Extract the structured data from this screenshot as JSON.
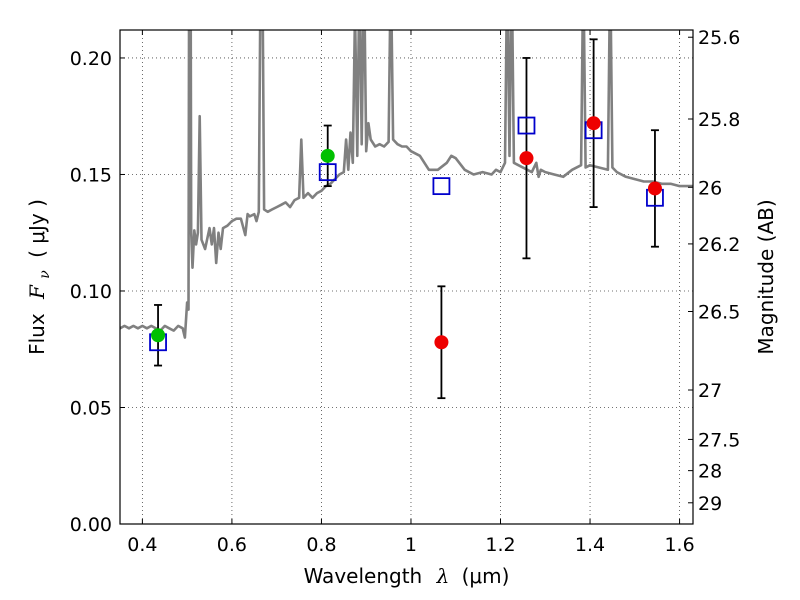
{
  "chart_data": {
    "type": "scatter",
    "title": "",
    "xlabel": {
      "prefix": "Wavelength",
      "symbol": "λ",
      "unit": "(μm)"
    },
    "ylabel": {
      "prefix": "Flux",
      "symbol": "F",
      "subscript": "ν",
      "unit": "( μJy )"
    },
    "ylabel_right": "Magnitude (AB)",
    "xlim": [
      0.35,
      1.63
    ],
    "ylim": [
      0.0,
      0.212
    ],
    "grid": true,
    "x_ticks": [
      {
        "value": 0.4,
        "label": "0.4"
      },
      {
        "value": 0.6,
        "label": "0.6"
      },
      {
        "value": 0.8,
        "label": "0.8"
      },
      {
        "value": 1.0,
        "label": "1"
      },
      {
        "value": 1.2,
        "label": "1.2"
      },
      {
        "value": 1.4,
        "label": "1.4"
      },
      {
        "value": 1.6,
        "label": "1.6"
      }
    ],
    "y_ticks": [
      {
        "value": 0.0,
        "label": "0.00"
      },
      {
        "value": 0.05,
        "label": "0.05"
      },
      {
        "value": 0.1,
        "label": "0.10"
      },
      {
        "value": 0.15,
        "label": "0.15"
      },
      {
        "value": 0.2,
        "label": "0.20"
      }
    ],
    "mag_ticks": [
      {
        "label": "25.6",
        "flux": 0.2089
      },
      {
        "label": "25.8",
        "flux": 0.1738
      },
      {
        "label": "26",
        "flux": 0.1445
      },
      {
        "label": "26.2",
        "flux": 0.1202
      },
      {
        "label": "26.5",
        "flux": 0.0912
      },
      {
        "label": "27",
        "flux": 0.0575
      },
      {
        "label": "27.5",
        "flux": 0.0363
      },
      {
        "label": "28",
        "flux": 0.0229
      },
      {
        "label": "29",
        "flux": 0.0091
      }
    ],
    "colors": {
      "spectrum": "#808080",
      "model": "#0000cc",
      "green": "#00c000",
      "red": "#ee0000",
      "errorbar": "#000000",
      "grid": "#444444"
    },
    "spectrum": [
      [
        0.35,
        0.084
      ],
      [
        0.36,
        0.085
      ],
      [
        0.37,
        0.084
      ],
      [
        0.38,
        0.085
      ],
      [
        0.39,
        0.084
      ],
      [
        0.4,
        0.085
      ],
      [
        0.41,
        0.084
      ],
      [
        0.42,
        0.085
      ],
      [
        0.43,
        0.084
      ],
      [
        0.44,
        0.083
      ],
      [
        0.45,
        0.085
      ],
      [
        0.46,
        0.084
      ],
      [
        0.47,
        0.083
      ],
      [
        0.48,
        0.085
      ],
      [
        0.49,
        0.084
      ],
      [
        0.495,
        0.08
      ],
      [
        0.5,
        0.095
      ],
      [
        0.503,
        0.092
      ],
      [
        0.506,
        0.4
      ],
      [
        0.509,
        0.125
      ],
      [
        0.512,
        0.11
      ],
      [
        0.516,
        0.126
      ],
      [
        0.52,
        0.12
      ],
      [
        0.524,
        0.125
      ],
      [
        0.528,
        0.175
      ],
      [
        0.532,
        0.122
      ],
      [
        0.54,
        0.118
      ],
      [
        0.55,
        0.127
      ],
      [
        0.555,
        0.12
      ],
      [
        0.56,
        0.127
      ],
      [
        0.565,
        0.112
      ],
      [
        0.57,
        0.125
      ],
      [
        0.575,
        0.118
      ],
      [
        0.58,
        0.127
      ],
      [
        0.59,
        0.128
      ],
      [
        0.6,
        0.13
      ],
      [
        0.61,
        0.131
      ],
      [
        0.62,
        0.131
      ],
      [
        0.63,
        0.124
      ],
      [
        0.635,
        0.133
      ],
      [
        0.64,
        0.132
      ],
      [
        0.65,
        0.133
      ],
      [
        0.655,
        0.13
      ],
      [
        0.66,
        0.134
      ],
      [
        0.664,
        0.24
      ],
      [
        0.668,
        0.24
      ],
      [
        0.672,
        0.135
      ],
      [
        0.68,
        0.134
      ],
      [
        0.69,
        0.135
      ],
      [
        0.7,
        0.136
      ],
      [
        0.71,
        0.137
      ],
      [
        0.72,
        0.138
      ],
      [
        0.73,
        0.136
      ],
      [
        0.74,
        0.139
      ],
      [
        0.75,
        0.14
      ],
      [
        0.755,
        0.165
      ],
      [
        0.76,
        0.14
      ],
      [
        0.77,
        0.142
      ],
      [
        0.78,
        0.14
      ],
      [
        0.79,
        0.142
      ],
      [
        0.8,
        0.143
      ],
      [
        0.81,
        0.145
      ],
      [
        0.82,
        0.146
      ],
      [
        0.83,
        0.148
      ],
      [
        0.84,
        0.15
      ],
      [
        0.85,
        0.151
      ],
      [
        0.855,
        0.165
      ],
      [
        0.86,
        0.152
      ],
      [
        0.865,
        0.168
      ],
      [
        0.87,
        0.155
      ],
      [
        0.875,
        0.22
      ],
      [
        0.88,
        0.158
      ],
      [
        0.885,
        0.24
      ],
      [
        0.89,
        0.163
      ],
      [
        0.895,
        0.24
      ],
      [
        0.9,
        0.16
      ],
      [
        0.905,
        0.172
      ],
      [
        0.91,
        0.165
      ],
      [
        0.92,
        0.162
      ],
      [
        0.93,
        0.163
      ],
      [
        0.94,
        0.162
      ],
      [
        0.95,
        0.164
      ],
      [
        0.955,
        0.24
      ],
      [
        0.96,
        0.165
      ],
      [
        0.97,
        0.163
      ],
      [
        0.98,
        0.162
      ],
      [
        0.99,
        0.162
      ],
      [
        1.0,
        0.16
      ],
      [
        1.02,
        0.158
      ],
      [
        1.03,
        0.155
      ],
      [
        1.04,
        0.152
      ],
      [
        1.06,
        0.152
      ],
      [
        1.08,
        0.155
      ],
      [
        1.09,
        0.158
      ],
      [
        1.1,
        0.157
      ],
      [
        1.12,
        0.152
      ],
      [
        1.14,
        0.15
      ],
      [
        1.16,
        0.151
      ],
      [
        1.18,
        0.15
      ],
      [
        1.19,
        0.152
      ],
      [
        1.2,
        0.151
      ],
      [
        1.21,
        0.155
      ],
      [
        1.215,
        0.24
      ],
      [
        1.22,
        0.158
      ],
      [
        1.225,
        0.24
      ],
      [
        1.23,
        0.155
      ],
      [
        1.24,
        0.154
      ],
      [
        1.26,
        0.152
      ],
      [
        1.27,
        0.151
      ],
      [
        1.28,
        0.155
      ],
      [
        1.285,
        0.149
      ],
      [
        1.29,
        0.152
      ],
      [
        1.3,
        0.151
      ],
      [
        1.32,
        0.15
      ],
      [
        1.34,
        0.149
      ],
      [
        1.36,
        0.152
      ],
      [
        1.38,
        0.154
      ],
      [
        1.385,
        0.24
      ],
      [
        1.39,
        0.153
      ],
      [
        1.4,
        0.154
      ],
      [
        1.42,
        0.153
      ],
      [
        1.44,
        0.152
      ],
      [
        1.445,
        0.24
      ],
      [
        1.45,
        0.153
      ],
      [
        1.46,
        0.151
      ],
      [
        1.48,
        0.149
      ],
      [
        1.5,
        0.148
      ],
      [
        1.52,
        0.147
      ],
      [
        1.54,
        0.147
      ],
      [
        1.56,
        0.146
      ],
      [
        1.58,
        0.146
      ],
      [
        1.6,
        0.145
      ],
      [
        1.62,
        0.145
      ],
      [
        1.63,
        0.145
      ]
    ],
    "model_points": [
      {
        "x": 0.435,
        "y": 0.078
      },
      {
        "x": 0.814,
        "y": 0.151
      },
      {
        "x": 1.068,
        "y": 0.145
      },
      {
        "x": 1.258,
        "y": 0.171
      },
      {
        "x": 1.408,
        "y": 0.169
      },
      {
        "x": 1.545,
        "y": 0.14
      }
    ],
    "observed_green": [
      {
        "x": 0.435,
        "y": 0.081,
        "err": 0.013
      },
      {
        "x": 0.814,
        "y": 0.158,
        "err": 0.013
      }
    ],
    "observed_red": [
      {
        "x": 1.068,
        "y": 0.078,
        "err": 0.024
      },
      {
        "x": 1.258,
        "y": 0.157,
        "err": 0.043
      },
      {
        "x": 1.408,
        "y": 0.172,
        "err": 0.036
      },
      {
        "x": 1.545,
        "y": 0.144,
        "err": 0.025
      }
    ]
  }
}
